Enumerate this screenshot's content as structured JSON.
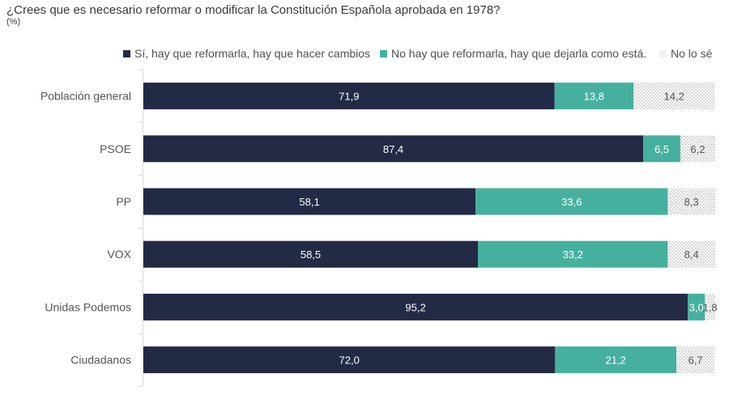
{
  "chart_data": {
    "type": "bar",
    "orientation": "horizontal",
    "stacked": true,
    "title": "¿Crees que es necesario reformar o modificar la Constitución Española aprobada en 1978?",
    "subtitle": "(%)",
    "xlabel": "",
    "ylabel": "",
    "xlim": [
      0,
      100
    ],
    "grid": false,
    "legend_position": "top",
    "categories": [
      "Población general",
      "PSOE",
      "PP",
      "VOX",
      "Unidas Podemos",
      "Ciudadanos"
    ],
    "series": [
      {
        "name": "Sí, hay que reformarla, hay que hacer cambios",
        "color": "#222a45",
        "label_color": "#ffffff",
        "pattern": "solid",
        "values": [
          71.9,
          87.4,
          58.1,
          58.5,
          95.2,
          72.0
        ],
        "labels": [
          "71,9",
          "87,4",
          "58,1",
          "58,5",
          "95,2",
          "72,0"
        ]
      },
      {
        "name": "No hay que reformarla, hay que dejarla como está.",
        "color": "#46b09e",
        "label_color": "#ffffff",
        "pattern": "solid",
        "values": [
          13.8,
          6.5,
          33.6,
          33.2,
          3.0,
          21.2
        ],
        "labels": [
          "13,8",
          "6,5",
          "33,6",
          "33,2",
          "3,0",
          "21,2"
        ]
      },
      {
        "name": "No lo sé",
        "color": "#d0d0d0",
        "label_color": "#555555",
        "pattern": "dotted",
        "values": [
          14.2,
          6.2,
          8.3,
          8.4,
          1.8,
          6.7
        ],
        "labels": [
          "14,2",
          "6,2",
          "8,3",
          "8,4",
          "1,8",
          "6,7"
        ]
      }
    ]
  }
}
